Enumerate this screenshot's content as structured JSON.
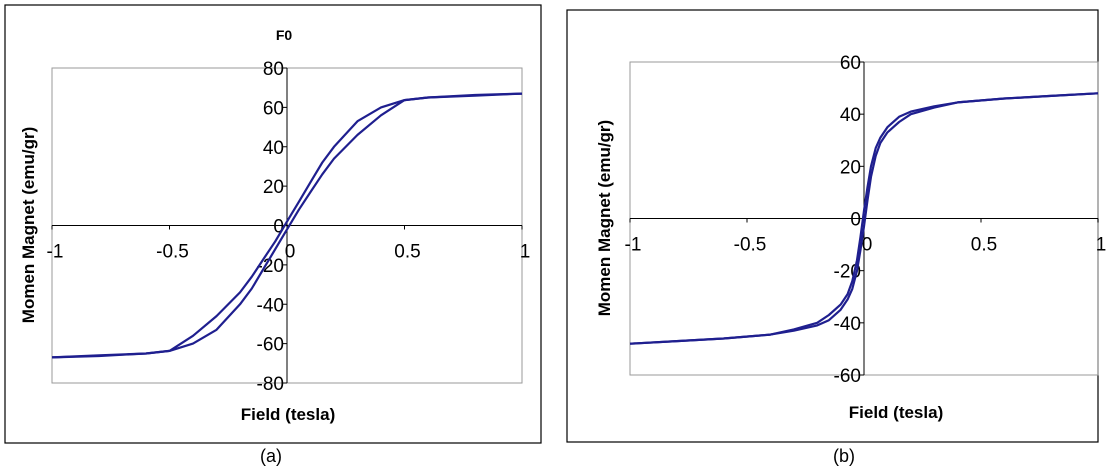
{
  "colors": {
    "curve": "#1f1f8f"
  },
  "chart_data": [
    {
      "panel": "(a)",
      "type": "line",
      "title": "F0",
      "xlabel": "Field (tesla)",
      "ylabel": "Momen Magnet (emu/gr)",
      "xlim": [
        -1,
        1
      ],
      "ylim": [
        -80,
        80
      ],
      "xticks": [
        "-1",
        "-0.5",
        "0",
        "0.5",
        "1"
      ],
      "yticks": [
        "80",
        "60",
        "40",
        "20",
        "0",
        "-20",
        "-40",
        "-60",
        "-80"
      ],
      "grid": false,
      "series": [
        {
          "values_x": [
            -1,
            -0.8,
            -0.6,
            -0.5,
            -0.4,
            -0.3,
            -0.2,
            -0.15,
            -0.1,
            -0.05,
            -0.02,
            0,
            0.05,
            0.1,
            0.15,
            0.2,
            0.3,
            0.4,
            0.5,
            0.6,
            0.8,
            1
          ],
          "values_y": [
            -67,
            -66.3,
            -65,
            -63.7,
            -60,
            -53,
            -40,
            -32,
            -22,
            -12,
            -6,
            -2,
            8,
            17,
            26,
            34,
            46,
            56,
            63.7,
            65,
            66,
            67
          ]
        },
        {
          "values_x": [
            1,
            0.8,
            0.6,
            0.5,
            0.4,
            0.3,
            0.2,
            0.15,
            0.1,
            0.05,
            0.02,
            0,
            -0.05,
            -0.1,
            -0.15,
            -0.2,
            -0.3,
            -0.4,
            -0.5,
            -0.6,
            -0.8,
            -1
          ],
          "values_y": [
            67,
            66.3,
            65,
            63.7,
            60,
            53,
            40,
            32,
            22,
            12,
            6,
            2,
            -8,
            -17,
            -26,
            -34,
            -46,
            -56,
            -63.7,
            -65,
            -66,
            -67
          ]
        }
      ]
    },
    {
      "panel": "(b)",
      "type": "line",
      "title": "",
      "xlabel": "Field (tesla)",
      "ylabel": "Momen Magnet (emu/gr)",
      "xlim": [
        -1,
        1
      ],
      "ylim": [
        -60,
        60
      ],
      "xticks": [
        "-1",
        "-0.5",
        "0",
        "0.5",
        "1"
      ],
      "yticks": [
        "60",
        "40",
        "20",
        "0",
        "-20",
        "-40",
        "-60"
      ],
      "grid": false,
      "series": [
        {
          "values_x": [
            -1,
            -0.8,
            -0.6,
            -0.4,
            -0.3,
            -0.2,
            -0.15,
            -0.1,
            -0.07,
            -0.05,
            -0.03,
            -0.015,
            0,
            0.015,
            0.03,
            0.05,
            0.07,
            0.1,
            0.15,
            0.2,
            0.3,
            0.4,
            0.6,
            0.8,
            1
          ],
          "values_y": [
            -48,
            -47,
            -46,
            -44.5,
            -43,
            -41,
            -39,
            -35,
            -31,
            -27,
            -20,
            -12,
            -3,
            7,
            16,
            24,
            29,
            33,
            37,
            40,
            42.5,
            44.5,
            46,
            47,
            48
          ]
        },
        {
          "values_x": [
            1,
            0.8,
            0.6,
            0.4,
            0.3,
            0.2,
            0.15,
            0.1,
            0.07,
            0.05,
            0.03,
            0.015,
            0,
            -0.015,
            -0.03,
            -0.05,
            -0.07,
            -0.1,
            -0.15,
            -0.2,
            -0.3,
            -0.4,
            -0.6,
            -0.8,
            -1
          ],
          "values_y": [
            48,
            47,
            46,
            44.5,
            43,
            41,
            39,
            35,
            31,
            27,
            20,
            12,
            3,
            -7,
            -16,
            -24,
            -29,
            -33,
            -37,
            -40,
            -42.5,
            -44.5,
            -46,
            -47,
            -48
          ]
        }
      ]
    }
  ]
}
